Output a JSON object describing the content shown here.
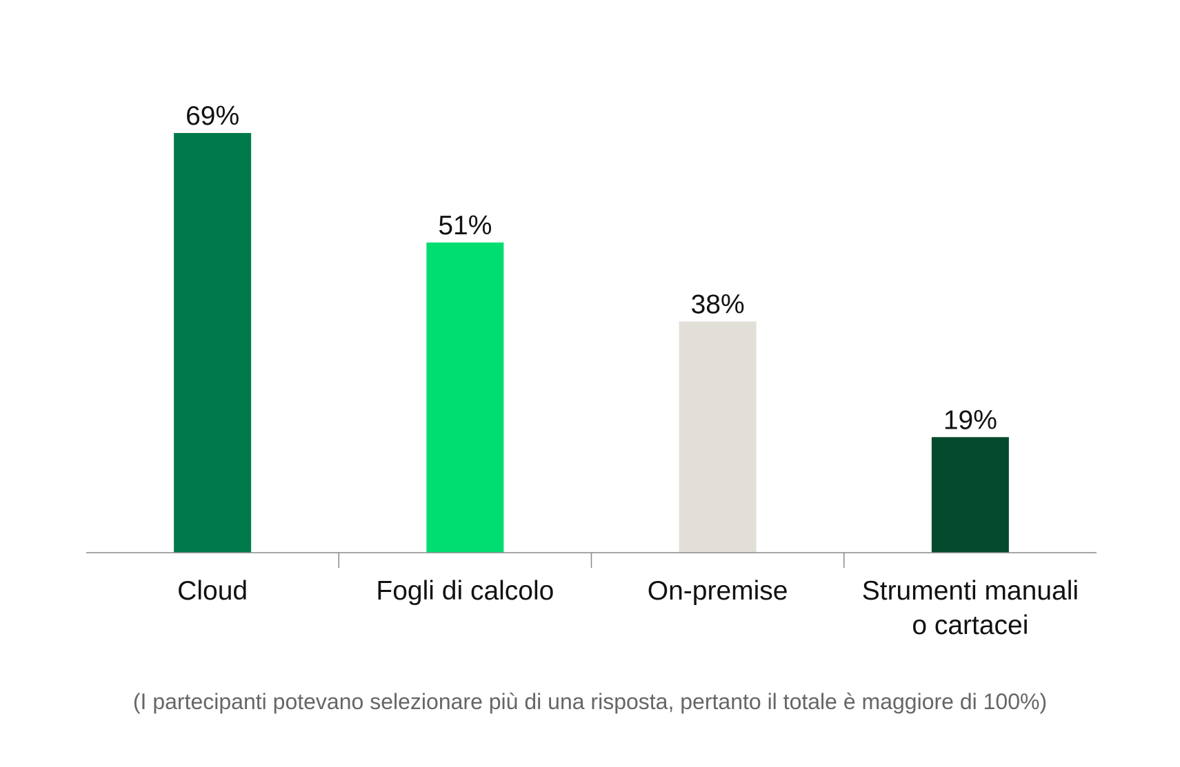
{
  "chart_data": {
    "type": "bar",
    "categories": [
      [
        "Cloud"
      ],
      [
        "Fogli di calcolo"
      ],
      [
        "On-premise"
      ],
      [
        "Strumenti manuali",
        "o cartacei"
      ]
    ],
    "values": [
      69,
      51,
      38,
      19
    ],
    "value_labels": [
      "69%",
      "51%",
      "38%",
      "19%"
    ],
    "bar_colors": [
      "#007A4A",
      "#00DE72",
      "#E2DFD9",
      "#064A2D"
    ],
    "ylim": [
      0,
      69
    ],
    "grid": false,
    "legend": "none",
    "axis_color": "#888888",
    "footnote": "(I partecipanti potevano selezionare più di una risposta, pertanto il totale è maggiore di 100%)"
  }
}
